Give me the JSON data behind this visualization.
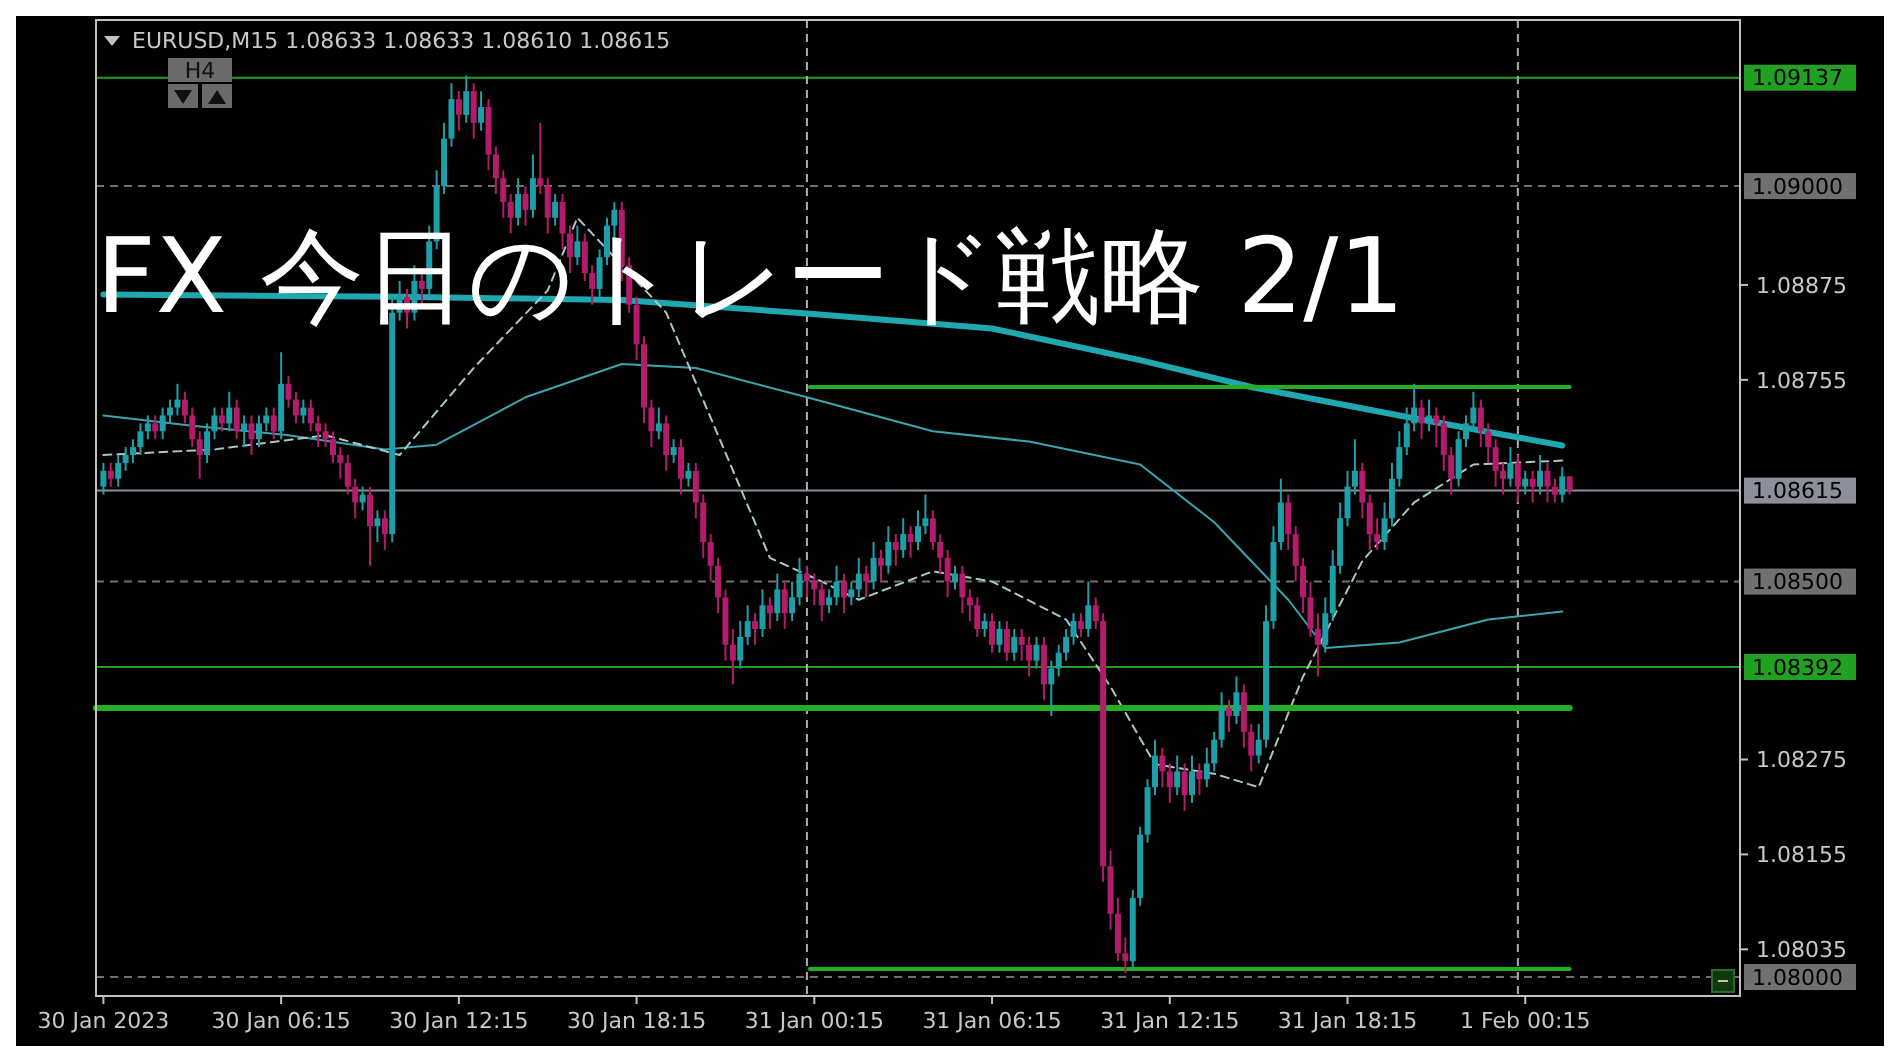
{
  "chart_data": {
    "type": "candlestick",
    "title": "FX 今日のトレード戦略 2/1",
    "subtitle": "EURUSD,M15  1.08633 1.08633 1.08610 1.08615",
    "annotations": [
      "H4"
    ],
    "x": [
      "2023-01-30T00:15",
      "2023-01-30T00:30",
      "2023-01-30T00:45",
      "2023-01-30T01:00",
      "2023-01-30T01:15",
      "2023-01-30T01:30",
      "2023-01-30T01:45",
      "2023-01-30T02:00",
      "2023-01-30T02:15",
      "2023-01-30T02:30",
      "2023-01-30T02:45",
      "2023-01-30T03:00",
      "2023-01-30T03:15",
      "2023-01-30T03:30",
      "2023-01-30T03:45",
      "2023-01-30T04:00",
      "2023-01-30T04:15",
      "2023-01-30T04:30",
      "2023-01-30T04:45",
      "2023-01-30T05:00",
      "2023-01-30T05:15",
      "2023-01-30T05:30",
      "2023-01-30T05:45",
      "2023-01-30T06:00",
      "2023-01-30T06:15",
      "2023-01-30T06:30",
      "2023-01-30T06:45",
      "2023-01-30T07:00",
      "2023-01-30T07:15",
      "2023-01-30T07:30",
      "2023-01-30T07:45",
      "2023-01-30T08:00",
      "2023-01-30T08:15",
      "2023-01-30T08:30",
      "2023-01-30T08:45",
      "2023-01-30T09:00",
      "2023-01-30T09:15",
      "2023-01-30T09:30",
      "2023-01-30T09:45",
      "2023-01-30T10:00",
      "2023-01-30T10:15",
      "2023-01-30T10:30",
      "2023-01-30T10:45",
      "2023-01-30T11:00",
      "2023-01-30T11:15",
      "2023-01-30T11:30",
      "2023-01-30T11:45",
      "2023-01-30T12:00",
      "2023-01-30T12:15",
      "2023-01-30T12:30",
      "2023-01-30T12:45",
      "2023-01-30T13:00",
      "2023-01-30T13:15",
      "2023-01-30T13:30",
      "2023-01-30T13:45",
      "2023-01-30T14:00",
      "2023-01-30T14:15",
      "2023-01-30T14:30",
      "2023-01-30T14:45",
      "2023-01-30T15:00",
      "2023-01-30T15:15",
      "2023-01-30T15:30",
      "2023-01-30T15:45",
      "2023-01-30T16:00",
      "2023-01-30T16:15",
      "2023-01-30T16:30",
      "2023-01-30T16:45",
      "2023-01-30T17:00",
      "2023-01-30T17:15",
      "2023-01-30T17:30",
      "2023-01-30T17:45",
      "2023-01-30T18:00",
      "2023-01-30T18:15",
      "2023-01-30T18:30",
      "2023-01-30T18:45",
      "2023-01-30T19:00",
      "2023-01-30T19:15",
      "2023-01-30T19:30",
      "2023-01-30T19:45",
      "2023-01-30T20:00",
      "2023-01-30T20:15",
      "2023-01-30T20:30",
      "2023-01-30T20:45",
      "2023-01-30T21:00",
      "2023-01-30T21:15",
      "2023-01-30T21:30",
      "2023-01-30T21:45",
      "2023-01-30T22:00",
      "2023-01-30T22:15",
      "2023-01-30T22:30",
      "2023-01-30T22:45",
      "2023-01-30T23:00",
      "2023-01-30T23:15",
      "2023-01-30T23:30",
      "2023-01-30T23:45",
      "2023-01-31T00:00",
      "2023-01-31T00:15",
      "2023-01-31T00:30",
      "2023-01-31T00:45",
      "2023-01-31T01:00",
      "2023-01-31T01:15",
      "2023-01-31T01:30",
      "2023-01-31T01:45",
      "2023-01-31T02:00",
      "2023-01-31T02:15",
      "2023-01-31T02:30",
      "2023-01-31T02:45",
      "2023-01-31T03:00",
      "2023-01-31T03:15",
      "2023-01-31T03:30",
      "2023-01-31T03:45",
      "2023-01-31T04:00",
      "2023-01-31T04:15",
      "2023-01-31T04:30",
      "2023-01-31T04:45",
      "2023-01-31T05:00",
      "2023-01-31T05:15",
      "2023-01-31T05:30",
      "2023-01-31T05:45",
      "2023-01-31T06:00",
      "2023-01-31T06:15",
      "2023-01-31T06:30",
      "2023-01-31T06:45",
      "2023-01-31T07:00",
      "2023-01-31T07:15",
      "2023-01-31T07:30",
      "2023-01-31T07:45",
      "2023-01-31T08:00",
      "2023-01-31T08:15",
      "2023-01-31T08:30",
      "2023-01-31T08:45",
      "2023-01-31T09:00",
      "2023-01-31T09:15",
      "2023-01-31T09:30",
      "2023-01-31T09:45",
      "2023-01-31T10:00",
      "2023-01-31T10:15",
      "2023-01-31T10:30",
      "2023-01-31T10:45",
      "2023-01-31T11:00",
      "2023-01-31T11:15",
      "2023-01-31T11:30",
      "2023-01-31T11:45",
      "2023-01-31T12:00",
      "2023-01-31T12:15",
      "2023-01-31T12:30",
      "2023-01-31T12:45",
      "2023-01-31T13:00",
      "2023-01-31T13:15",
      "2023-01-31T13:30",
      "2023-01-31T13:45",
      "2023-01-31T14:00",
      "2023-01-31T14:15",
      "2023-01-31T14:30",
      "2023-01-31T14:45",
      "2023-01-31T15:00",
      "2023-01-31T15:15",
      "2023-01-31T15:30",
      "2023-01-31T15:45",
      "2023-01-31T16:00",
      "2023-01-31T16:15",
      "2023-01-31T16:30",
      "2023-01-31T16:45",
      "2023-01-31T17:00",
      "2023-01-31T17:15",
      "2023-01-31T17:30",
      "2023-01-31T17:45",
      "2023-01-31T18:00",
      "2023-01-31T18:15",
      "2023-01-31T18:30",
      "2023-01-31T18:45",
      "2023-01-31T19:00",
      "2023-01-31T19:15",
      "2023-01-31T19:30",
      "2023-01-31T19:45",
      "2023-01-31T20:00",
      "2023-01-31T20:15",
      "2023-01-31T20:30",
      "2023-01-31T20:45",
      "2023-01-31T21:00",
      "2023-01-31T21:15",
      "2023-01-31T21:30",
      "2023-01-31T21:45",
      "2023-01-31T22:00",
      "2023-01-31T22:15",
      "2023-01-31T22:30",
      "2023-01-31T22:45",
      "2023-01-31T23:00",
      "2023-01-31T23:15",
      "2023-01-31T23:30",
      "2023-01-31T23:45",
      "2023-02-01T00:00",
      "2023-02-01T00:15",
      "2023-02-01T00:30",
      "2023-02-01T00:45",
      "2023-02-01T01:00",
      "2023-02-01T01:15",
      "2023-02-01T01:30",
      "2023-02-01T01:45"
    ],
    "ohlc": [
      [
        1.0862,
        1.0865,
        1.0861,
        1.0864
      ],
      [
        1.0864,
        1.0865,
        1.0862,
        1.0863
      ],
      [
        1.0863,
        1.0866,
        1.0862,
        1.0865
      ],
      [
        1.0865,
        1.0867,
        1.0864,
        1.0866
      ],
      [
        1.0866,
        1.0868,
        1.0865,
        1.0867
      ],
      [
        1.0867,
        1.087,
        1.0866,
        1.0869
      ],
      [
        1.0869,
        1.0871,
        1.0868,
        1.087
      ],
      [
        1.087,
        1.0871,
        1.0868,
        1.0869
      ],
      [
        1.0869,
        1.0872,
        1.0868,
        1.0871
      ],
      [
        1.0871,
        1.0873,
        1.087,
        1.0872
      ],
      [
        1.0872,
        1.0875,
        1.0871,
        1.0873
      ],
      [
        1.0873,
        1.0874,
        1.087,
        1.0871
      ],
      [
        1.0871,
        1.0872,
        1.0867,
        1.0868
      ],
      [
        1.0868,
        1.0869,
        1.0863,
        1.0866
      ],
      [
        1.0866,
        1.087,
        1.0865,
        1.0869
      ],
      [
        1.0869,
        1.0872,
        1.0868,
        1.0871
      ],
      [
        1.0871,
        1.0872,
        1.0869,
        1.087
      ],
      [
        1.087,
        1.0874,
        1.0869,
        1.0872
      ],
      [
        1.0872,
        1.0873,
        1.0868,
        1.0869
      ],
      [
        1.0869,
        1.0871,
        1.0867,
        1.087
      ],
      [
        1.087,
        1.0871,
        1.0866,
        1.0868
      ],
      [
        1.0868,
        1.0871,
        1.0867,
        1.087
      ],
      [
        1.087,
        1.0872,
        1.0869,
        1.0871
      ],
      [
        1.0871,
        1.0872,
        1.0868,
        1.0869
      ],
      [
        1.0869,
        1.0879,
        1.0868,
        1.0875
      ],
      [
        1.0875,
        1.0876,
        1.0872,
        1.0873
      ],
      [
        1.0873,
        1.0874,
        1.087,
        1.0871
      ],
      [
        1.0871,
        1.0873,
        1.087,
        1.0872
      ],
      [
        1.0872,
        1.0873,
        1.0869,
        1.087
      ],
      [
        1.087,
        1.0871,
        1.0867,
        1.0869
      ],
      [
        1.0869,
        1.087,
        1.0867,
        1.0868
      ],
      [
        1.0868,
        1.0869,
        1.0865,
        1.0866
      ],
      [
        1.0866,
        1.0867,
        1.0863,
        1.0865
      ],
      [
        1.0865,
        1.0866,
        1.0861,
        1.0862
      ],
      [
        1.0862,
        1.0863,
        1.0858,
        1.086
      ],
      [
        1.086,
        1.0862,
        1.0859,
        1.0861
      ],
      [
        1.0861,
        1.0862,
        1.0852,
        1.0857
      ],
      [
        1.0857,
        1.0859,
        1.0855,
        1.0858
      ],
      [
        1.0858,
        1.0859,
        1.0854,
        1.0856
      ],
      [
        1.0856,
        1.0886,
        1.0855,
        1.0884
      ],
      [
        1.0884,
        1.0888,
        1.0883,
        1.0886
      ],
      [
        1.0886,
        1.0887,
        1.0882,
        1.0884
      ],
      [
        1.0884,
        1.089,
        1.0883,
        1.0888
      ],
      [
        1.0888,
        1.0889,
        1.0885,
        1.0887
      ],
      [
        1.0887,
        1.0895,
        1.0886,
        1.0893
      ],
      [
        1.0893,
        1.0902,
        1.0892,
        1.09
      ],
      [
        1.09,
        1.0908,
        1.0899,
        1.0906
      ],
      [
        1.0906,
        1.0913,
        1.0905,
        1.0911
      ],
      [
        1.0911,
        1.0912,
        1.0907,
        1.0909
      ],
      [
        1.0909,
        1.0914,
        1.0908,
        1.0912
      ],
      [
        1.0912,
        1.0913,
        1.0906,
        1.0908
      ],
      [
        1.0908,
        1.0912,
        1.0907,
        1.091
      ],
      [
        1.091,
        1.0911,
        1.0902,
        1.0904
      ],
      [
        1.0904,
        1.0905,
        1.0899,
        1.0901
      ],
      [
        1.0901,
        1.0902,
        1.0896,
        1.0898
      ],
      [
        1.0898,
        1.0899,
        1.0894,
        1.0896
      ],
      [
        1.0896,
        1.0901,
        1.0895,
        1.0899
      ],
      [
        1.0899,
        1.09,
        1.0895,
        1.0897
      ],
      [
        1.0897,
        1.0904,
        1.0896,
        1.0901
      ],
      [
        1.0901,
        1.0908,
        1.0899,
        1.09
      ],
      [
        1.09,
        1.0901,
        1.0894,
        1.0896
      ],
      [
        1.0896,
        1.0899,
        1.0895,
        1.0898
      ],
      [
        1.0898,
        1.0899,
        1.0892,
        1.0894
      ],
      [
        1.0894,
        1.0895,
        1.0889,
        1.0891
      ],
      [
        1.0891,
        1.0895,
        1.089,
        1.0893
      ],
      [
        1.0893,
        1.0894,
        1.0888,
        1.0889
      ],
      [
        1.0889,
        1.089,
        1.0885,
        1.0887
      ],
      [
        1.0887,
        1.0892,
        1.0886,
        1.0891
      ],
      [
        1.0891,
        1.0896,
        1.089,
        1.0895
      ],
      [
        1.0895,
        1.0898,
        1.0893,
        1.0897
      ],
      [
        1.0897,
        1.0898,
        1.0888,
        1.089
      ],
      [
        1.089,
        1.0891,
        1.0884,
        1.0885
      ],
      [
        1.0885,
        1.0886,
        1.0878,
        1.088
      ],
      [
        1.088,
        1.0881,
        1.087,
        1.0872
      ],
      [
        1.0872,
        1.0873,
        1.0867,
        1.0869
      ],
      [
        1.0869,
        1.0872,
        1.0868,
        1.087
      ],
      [
        1.087,
        1.0871,
        1.0864,
        1.0866
      ],
      [
        1.0866,
        1.0868,
        1.0865,
        1.0867
      ],
      [
        1.0867,
        1.0868,
        1.0861,
        1.0863
      ],
      [
        1.0863,
        1.0865,
        1.0862,
        1.0864
      ],
      [
        1.0864,
        1.0865,
        1.0858,
        1.086
      ],
      [
        1.086,
        1.0861,
        1.0853,
        1.0855
      ],
      [
        1.0855,
        1.0856,
        1.085,
        1.0852
      ],
      [
        1.0852,
        1.0853,
        1.0846,
        1.0848
      ],
      [
        1.0848,
        1.0849,
        1.084,
        1.0842
      ],
      [
        1.0842,
        1.0844,
        1.0837,
        1.084
      ],
      [
        1.084,
        1.0845,
        1.0839,
        1.0843
      ],
      [
        1.0843,
        1.0847,
        1.0842,
        1.0845
      ],
      [
        1.0845,
        1.0846,
        1.0842,
        1.0844
      ],
      [
        1.0844,
        1.0849,
        1.0843,
        1.0847
      ],
      [
        1.0847,
        1.0848,
        1.0844,
        1.0846
      ],
      [
        1.0846,
        1.0851,
        1.0845,
        1.0849
      ],
      [
        1.0849,
        1.085,
        1.0844,
        1.0846
      ],
      [
        1.0846,
        1.085,
        1.0845,
        1.0848
      ],
      [
        1.0848,
        1.0853,
        1.0847,
        1.0851
      ],
      [
        1.0851,
        1.0852,
        1.0848,
        1.085
      ],
      [
        1.085,
        1.0851,
        1.0847,
        1.0849
      ],
      [
        1.0849,
        1.085,
        1.0845,
        1.0847
      ],
      [
        1.0847,
        1.0849,
        1.0846,
        1.0848
      ],
      [
        1.0848,
        1.0852,
        1.0847,
        1.085
      ],
      [
        1.085,
        1.0851,
        1.0846,
        1.0848
      ],
      [
        1.0848,
        1.085,
        1.0847,
        1.0849
      ],
      [
        1.0849,
        1.0853,
        1.0848,
        1.0851
      ],
      [
        1.0851,
        1.0852,
        1.0848,
        1.085
      ],
      [
        1.085,
        1.0855,
        1.0849,
        1.0853
      ],
      [
        1.0853,
        1.0854,
        1.085,
        1.0852
      ],
      [
        1.0852,
        1.0857,
        1.0851,
        1.0855
      ],
      [
        1.0855,
        1.0856,
        1.0852,
        1.0854
      ],
      [
        1.0854,
        1.0858,
        1.0853,
        1.0856
      ],
      [
        1.0856,
        1.0857,
        1.0853,
        1.0855
      ],
      [
        1.0855,
        1.0859,
        1.0854,
        1.0857
      ],
      [
        1.0857,
        1.0861,
        1.0856,
        1.0858
      ],
      [
        1.0858,
        1.0859,
        1.0854,
        1.0855
      ],
      [
        1.0855,
        1.0856,
        1.0851,
        1.0853
      ],
      [
        1.0853,
        1.0854,
        1.0848,
        1.085
      ],
      [
        1.085,
        1.0852,
        1.0849,
        1.0851
      ],
      [
        1.0851,
        1.0852,
        1.0846,
        1.0848
      ],
      [
        1.0848,
        1.0849,
        1.0845,
        1.0847
      ],
      [
        1.0847,
        1.0848,
        1.0843,
        1.0844
      ],
      [
        1.0844,
        1.0846,
        1.0843,
        1.0845
      ],
      [
        1.0845,
        1.0846,
        1.0841,
        1.0842
      ],
      [
        1.0842,
        1.0845,
        1.0841,
        1.0844
      ],
      [
        1.0844,
        1.0845,
        1.084,
        1.0841
      ],
      [
        1.0841,
        1.0844,
        1.084,
        1.0843
      ],
      [
        1.0843,
        1.0844,
        1.084,
        1.0842
      ],
      [
        1.0842,
        1.0843,
        1.0838,
        1.084
      ],
      [
        1.084,
        1.0843,
        1.0839,
        1.0842
      ],
      [
        1.0842,
        1.0843,
        1.0835,
        1.0837
      ],
      [
        1.0837,
        1.084,
        1.0833,
        1.0839
      ],
      [
        1.0839,
        1.0842,
        1.0838,
        1.0841
      ],
      [
        1.0841,
        1.0844,
        1.084,
        1.0843
      ],
      [
        1.0843,
        1.0846,
        1.0842,
        1.0845
      ],
      [
        1.0845,
        1.0846,
        1.0843,
        1.0844
      ],
      [
        1.0844,
        1.085,
        1.0843,
        1.0847
      ],
      [
        1.0847,
        1.0848,
        1.0844,
        1.0845
      ],
      [
        1.0845,
        1.0846,
        1.0812,
        1.0814
      ],
      [
        1.0814,
        1.0816,
        1.0806,
        1.0808
      ],
      [
        1.0808,
        1.081,
        1.0802,
        1.0803
      ],
      [
        1.0803,
        1.0805,
        1.08005,
        1.0802
      ],
      [
        1.0802,
        1.0811,
        1.0801,
        1.081
      ],
      [
        1.081,
        1.0819,
        1.0809,
        1.0818
      ],
      [
        1.0818,
        1.0825,
        1.0817,
        1.0824
      ],
      [
        1.0824,
        1.083,
        1.0823,
        1.0828
      ],
      [
        1.0828,
        1.0829,
        1.0824,
        1.0826
      ],
      [
        1.0826,
        1.0827,
        1.0822,
        1.0824
      ],
      [
        1.0824,
        1.0828,
        1.0823,
        1.0826
      ],
      [
        1.0826,
        1.0827,
        1.0821,
        1.0823
      ],
      [
        1.0823,
        1.0828,
        1.0822,
        1.0826
      ],
      [
        1.0826,
        1.0827,
        1.0823,
        1.0825
      ],
      [
        1.0825,
        1.0829,
        1.0824,
        1.0827
      ],
      [
        1.0827,
        1.0831,
        1.0826,
        1.083
      ],
      [
        1.083,
        1.0836,
        1.0829,
        1.0834
      ],
      [
        1.0834,
        1.0835,
        1.0831,
        1.0833
      ],
      [
        1.0833,
        1.0838,
        1.0832,
        1.0836
      ],
      [
        1.0836,
        1.0837,
        1.0829,
        1.0831
      ],
      [
        1.0831,
        1.0832,
        1.0826,
        1.0828
      ],
      [
        1.0828,
        1.0832,
        1.0827,
        1.083
      ],
      [
        1.083,
        1.0847,
        1.0829,
        1.0845
      ],
      [
        1.0845,
        1.0857,
        1.0844,
        1.0855
      ],
      [
        1.0855,
        1.0863,
        1.0854,
        1.086
      ],
      [
        1.086,
        1.0861,
        1.0854,
        1.0856
      ],
      [
        1.0856,
        1.0857,
        1.085,
        1.0852
      ],
      [
        1.0852,
        1.0853,
        1.0846,
        1.0848
      ],
      [
        1.0848,
        1.085,
        1.0843,
        1.0844
      ],
      [
        1.0844,
        1.0846,
        1.0838,
        1.0842
      ],
      [
        1.0842,
        1.0848,
        1.0841,
        1.0846
      ],
      [
        1.0846,
        1.0854,
        1.0845,
        1.0852
      ],
      [
        1.0852,
        1.086,
        1.0851,
        1.0858
      ],
      [
        1.0858,
        1.0864,
        1.0857,
        1.0862
      ],
      [
        1.0862,
        1.0868,
        1.0861,
        1.0864
      ],
      [
        1.0864,
        1.0865,
        1.0858,
        1.086
      ],
      [
        1.086,
        1.0861,
        1.0854,
        1.0856
      ],
      [
        1.0856,
        1.0858,
        1.0854,
        1.0855
      ],
      [
        1.0855,
        1.086,
        1.0854,
        1.0858
      ],
      [
        1.0858,
        1.0865,
        1.0857,
        1.0863
      ],
      [
        1.0863,
        1.0869,
        1.0862,
        1.0867
      ],
      [
        1.0867,
        1.0872,
        1.0866,
        1.087
      ],
      [
        1.087,
        1.0875,
        1.0869,
        1.0872
      ],
      [
        1.0872,
        1.0873,
        1.0868,
        1.087
      ],
      [
        1.087,
        1.0873,
        1.0869,
        1.0871
      ],
      [
        1.0871,
        1.0872,
        1.0867,
        1.087
      ],
      [
        1.087,
        1.0871,
        1.0864,
        1.0866
      ],
      [
        1.0866,
        1.0867,
        1.0861,
        1.0863
      ],
      [
        1.0863,
        1.0869,
        1.0862,
        1.0868
      ],
      [
        1.0868,
        1.0871,
        1.0867,
        1.087
      ],
      [
        1.087,
        1.0874,
        1.0869,
        1.0872
      ],
      [
        1.0872,
        1.0873,
        1.0867,
        1.0869
      ],
      [
        1.0869,
        1.087,
        1.0865,
        1.0867
      ],
      [
        1.0867,
        1.0868,
        1.0862,
        1.0864
      ],
      [
        1.0864,
        1.0865,
        1.0861,
        1.0863
      ],
      [
        1.0863,
        1.0867,
        1.0862,
        1.0865
      ],
      [
        1.0865,
        1.0866,
        1.086,
        1.0862
      ],
      [
        1.0862,
        1.0864,
        1.0861,
        1.0863
      ],
      [
        1.0863,
        1.0864,
        1.086,
        1.0862
      ],
      [
        1.0862,
        1.0866,
        1.0861,
        1.0864
      ],
      [
        1.0864,
        1.0865,
        1.086,
        1.0862
      ],
      [
        1.0862,
        1.0863,
        1.086,
        1.0861
      ],
      [
        1.0861,
        1.08645,
        1.086,
        1.08633
      ],
      [
        1.08633,
        1.08633,
        1.0861,
        1.08615
      ]
    ],
    "colors": [
      "#1e9ea6",
      "#b31b6b",
      "#1e9ea6",
      "#1e9ea6",
      "#1e9ea6",
      "#1e9ea6",
      "#1e9ea6",
      "#b31b6b",
      "#1e9ea6",
      "#1e9ea6",
      "#1e9ea6",
      "#b31b6b",
      "#b31b6b",
      "#b31b6b",
      "#1e9ea6",
      "#1e9ea6",
      "#b31b6b",
      "#1e9ea6",
      "#b31b6b",
      "#1e9ea6",
      "#b31b6b",
      "#1e9ea6",
      "#1e9ea6",
      "#b31b6b",
      "#1e9ea6",
      "#b31b6b",
      "#b31b6b",
      "#1e9ea6",
      "#b31b6b",
      "#b31b6b",
      "#b31b6b",
      "#b31b6b",
      "#b31b6b",
      "#b31b6b",
      "#b31b6b",
      "#1e9ea6",
      "#b31b6b",
      "#1e9ea6",
      "#b31b6b",
      "#1e9ea6",
      "#1e9ea6",
      "#b31b6b",
      "#1e9ea6",
      "#b31b6b",
      "#1e9ea6",
      "#1e9ea6",
      "#1e9ea6",
      "#1e9ea6",
      "#b31b6b",
      "#1e9ea6",
      "#b31b6b",
      "#1e9ea6",
      "#b31b6b",
      "#b31b6b",
      "#b31b6b",
      "#b31b6b",
      "#1e9ea6",
      "#b31b6b",
      "#1e9ea6",
      "#b31b6b",
      "#b31b6b",
      "#1e9ea6",
      "#b31b6b",
      "#b31b6b",
      "#1e9ea6",
      "#b31b6b",
      "#b31b6b",
      "#1e9ea6",
      "#1e9ea6",
      "#1e9ea6",
      "#b31b6b",
      "#b31b6b",
      "#b31b6b",
      "#b31b6b",
      "#b31b6b",
      "#1e9ea6",
      "#b31b6b",
      "#1e9ea6",
      "#b31b6b",
      "#1e9ea6",
      "#b31b6b",
      "#b31b6b",
      "#b31b6b",
      "#b31b6b",
      "#b31b6b",
      "#b31b6b",
      "#1e9ea6",
      "#1e9ea6",
      "#b31b6b",
      "#1e9ea6",
      "#b31b6b",
      "#1e9ea6",
      "#b31b6b",
      "#1e9ea6",
      "#1e9ea6",
      "#b31b6b",
      "#b31b6b",
      "#b31b6b",
      "#1e9ea6",
      "#1e9ea6",
      "#b31b6b",
      "#1e9ea6",
      "#1e9ea6",
      "#b31b6b",
      "#1e9ea6",
      "#b31b6b",
      "#1e9ea6",
      "#b31b6b",
      "#1e9ea6",
      "#b31b6b",
      "#1e9ea6",
      "#1e9ea6",
      "#b31b6b",
      "#b31b6b",
      "#b31b6b",
      "#1e9ea6",
      "#b31b6b",
      "#b31b6b",
      "#b31b6b",
      "#1e9ea6",
      "#b31b6b",
      "#1e9ea6",
      "#b31b6b",
      "#1e9ea6",
      "#b31b6b",
      "#b31b6b",
      "#1e9ea6",
      "#b31b6b",
      "#1e9ea6",
      "#1e9ea6",
      "#1e9ea6",
      "#1e9ea6",
      "#b31b6b",
      "#1e9ea6",
      "#b31b6b",
      "#b31b6b",
      "#b31b6b",
      "#b31b6b",
      "#b31b6b",
      "#1e9ea6",
      "#1e9ea6",
      "#1e9ea6",
      "#1e9ea6",
      "#b31b6b",
      "#b31b6b",
      "#1e9ea6",
      "#b31b6b",
      "#1e9ea6",
      "#b31b6b",
      "#1e9ea6",
      "#1e9ea6",
      "#1e9ea6",
      "#b31b6b",
      "#1e9ea6",
      "#b31b6b",
      "#b31b6b",
      "#1e9ea6",
      "#1e9ea6",
      "#1e9ea6",
      "#1e9ea6",
      "#b31b6b",
      "#b31b6b",
      "#b31b6b",
      "#b31b6b",
      "#b31b6b",
      "#1e9ea6",
      "#1e9ea6",
      "#1e9ea6",
      "#1e9ea6",
      "#1e9ea6",
      "#b31b6b",
      "#b31b6b",
      "#b31b6b",
      "#1e9ea6",
      "#1e9ea6",
      "#1e9ea6",
      "#1e9ea6",
      "#1e9ea6",
      "#b31b6b",
      "#1e9ea6",
      "#b31b6b",
      "#b31b6b",
      "#b31b6b",
      "#1e9ea6",
      "#1e9ea6",
      "#1e9ea6",
      "#b31b6b",
      "#b31b6b",
      "#b31b6b",
      "#b31b6b",
      "#1e9ea6",
      "#b31b6b",
      "#1e9ea6",
      "#b31b6b",
      "#1e9ea6",
      "#b31b6b",
      "#b31b6b",
      "#1e9ea6",
      "#b31b6b"
    ],
    "series": [
      {
        "type": "line",
        "color": "#1fa8b0",
        "x": [
          "2023-01-30T00:15",
          "2023-01-30T10:15",
          "2023-01-30T17:45",
          "2023-01-31T00:00",
          "2023-01-31T06:15",
          "2023-01-31T11:15",
          "2023-01-31T15:00",
          "2023-01-31T20:00",
          "2023-02-01T01:30"
        ],
        "values": [
          1.08863,
          1.0886,
          1.08856,
          1.08839,
          1.0882,
          1.0878,
          1.08746,
          1.0871,
          1.08672
        ]
      },
      {
        "type": "line",
        "color": "#3aa5b0",
        "x": [
          "2023-01-30T00:15",
          "2023-01-30T03:15",
          "2023-01-30T06:30",
          "2023-01-30T09:45",
          "2023-01-30T11:30",
          "2023-01-30T14:30",
          "2023-01-30T17:45",
          "2023-01-30T20:15",
          "2023-01-31T00:00",
          "2023-01-31T04:15",
          "2023-01-31T07:30",
          "2023-01-31T11:15",
          "2023-01-31T13:45",
          "2023-01-31T16:15",
          "2023-01-31T17:30",
          "2023-01-31T20:00",
          "2023-01-31T23:00",
          "2023-02-01T01:30"
        ],
        "values": [
          1.0871,
          1.08697,
          1.08685,
          1.08667,
          1.08673,
          1.08733,
          1.08775,
          1.0877,
          1.08733,
          1.0869,
          1.08677,
          1.08648,
          1.08575,
          1.08477,
          1.08416,
          1.08423,
          1.08452,
          1.08462
        ]
      },
      {
        "type": "line",
        "color": "#a8c8c8",
        "line_style": "dashed",
        "x": [
          "2023-01-30T00:15",
          "2023-01-30T04:00",
          "2023-01-30T07:45",
          "2023-01-30T10:15",
          "2023-01-30T12:45",
          "2023-01-30T15:15",
          "2023-01-30T16:15",
          "2023-01-30T19:15",
          "2023-01-30T22:45",
          "2023-01-31T00:30",
          "2023-01-31T01:45",
          "2023-01-31T04:15",
          "2023-01-31T06:15",
          "2023-01-31T08:45",
          "2023-01-31T10:15",
          "2023-01-31T11:45",
          "2023-01-31T13:45",
          "2023-01-31T15:15",
          "2023-01-31T16:45",
          "2023-01-31T18:45",
          "2023-01-31T20:30",
          "2023-01-31T22:30",
          "2023-02-01T01:30"
        ],
        "values": [
          1.0866,
          1.08667,
          1.08685,
          1.0866,
          1.0877,
          1.08868,
          1.0896,
          1.0884,
          1.0853,
          1.085,
          1.08477,
          1.08513,
          1.085,
          1.08452,
          1.08367,
          1.08269,
          1.08257,
          1.0824,
          1.0838,
          1.08526,
          1.086,
          1.08648,
          1.08653
        ]
      },
      {
        "type": "line",
        "color": "#22b022",
        "x": [
          "2023-01-31T00:06",
          "2023-02-01T01:45"
        ],
        "values": [
          1.08746,
          1.08746
        ]
      },
      {
        "type": "line",
        "color": "#22b022",
        "x": [
          "2023-01-30T00:00",
          "2023-02-01T01:45"
        ],
        "values": [
          1.0834,
          1.0834
        ]
      },
      {
        "type": "line",
        "color": "#22b022",
        "x": [
          "2023-01-31T00:06",
          "2023-02-01T01:45"
        ],
        "values": [
          1.0801,
          1.0801
        ]
      }
    ],
    "ref_lines": [
      {
        "axis": "y",
        "value": 1.09137,
        "label": "1.09137",
        "color": "#22a022"
      },
      {
        "axis": "y",
        "value": 1.09,
        "label": "1.09000",
        "color": "#707070",
        "line_style": "dashed"
      },
      {
        "axis": "y",
        "value": 1.08615,
        "label": "1.08615",
        "color": "#8a8f9a"
      },
      {
        "axis": "y",
        "value": 1.085,
        "label": "1.08500",
        "color": "#707070",
        "line_style": "dashed"
      },
      {
        "axis": "y",
        "value": 1.08392,
        "label": "1.08392",
        "color": "#22a022"
      },
      {
        "axis": "y",
        "value": 1.08,
        "label": "1.08000",
        "color": "#707070",
        "line_style": "dashed"
      },
      {
        "axis": "x",
        "value": "2023-01-31T00:00",
        "color": "#b0b0b0",
        "line_style": "dashed"
      },
      {
        "axis": "x",
        "value": "2023-02-01T00:00",
        "color": "#b0b0b0",
        "line_style": "dashed"
      }
    ],
    "xlim": [
      "2023-01-30T00:00",
      "2023-02-01T07:30"
    ],
    "xticks": [
      {
        "value": "2023-01-30T00:15",
        "label": "30 Jan 2023"
      },
      {
        "value": "2023-01-30T06:15",
        "label": "30 Jan 06:15"
      },
      {
        "value": "2023-01-30T12:15",
        "label": "30 Jan 12:15"
      },
      {
        "value": "2023-01-30T18:15",
        "label": "30 Jan 18:15"
      },
      {
        "value": "2023-01-31T00:15",
        "label": "31 Jan 00:15"
      },
      {
        "value": "2023-01-31T06:15",
        "label": "31 Jan 06:15"
      },
      {
        "value": "2023-01-31T12:15",
        "label": "31 Jan 12:15"
      },
      {
        "value": "2023-01-31T18:15",
        "label": "31 Jan 18:15"
      },
      {
        "value": "2023-02-01T00:15",
        "label": "1 Feb 00:15"
      }
    ],
    "ylim": [
      1.07976,
      1.0921
    ],
    "yticks": [
      1.08875,
      1.08755,
      1.08275,
      1.08155,
      1.08035
    ],
    "grid": false
  }
}
